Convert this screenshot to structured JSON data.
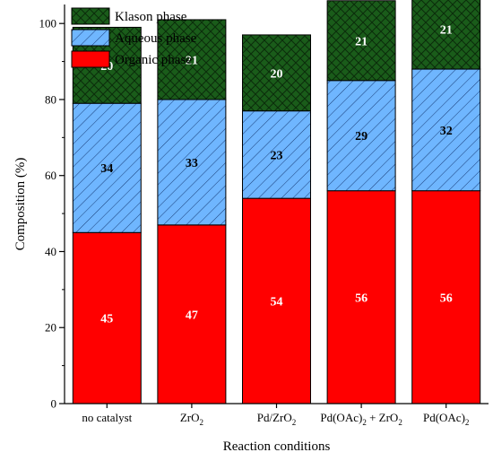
{
  "chart_data": {
    "type": "bar",
    "stacked": true,
    "categories": [
      {
        "main": "no catalyst",
        "parts": [
          [
            "no catalyst",
            ""
          ]
        ]
      },
      {
        "main": "ZrO2",
        "parts": [
          [
            "ZrO",
            ""
          ],
          [
            "2",
            "sub"
          ]
        ]
      },
      {
        "main": "Pd/ZrO2",
        "parts": [
          [
            "Pd/ZrO",
            ""
          ],
          [
            "2",
            "sub"
          ]
        ]
      },
      {
        "main": "Pd(OAc)2 + ZrO2",
        "parts": [
          [
            "Pd(OAc)",
            ""
          ],
          [
            "2",
            "sub"
          ],
          [
            " + ZrO",
            ""
          ],
          [
            "2",
            "sub"
          ]
        ]
      },
      {
        "main": "Pd(OAc)2",
        "parts": [
          [
            "Pd(OAc)",
            ""
          ],
          [
            "2",
            "sub"
          ]
        ]
      }
    ],
    "series": [
      {
        "name": "Organic phase",
        "values": [
          45,
          47,
          54,
          56,
          56
        ],
        "color": "#ff0000",
        "pattern": "solid",
        "label_color": "#ffffff"
      },
      {
        "name": "Aqueous phase",
        "values": [
          34,
          33,
          23,
          29,
          32
        ],
        "color": "#6fb6ff",
        "pattern": "diagonal",
        "label_color": "#000000"
      },
      {
        "name": "Klason phase",
        "values": [
          20,
          21,
          20,
          21,
          21
        ],
        "color": "#1a5c1a",
        "pattern": "crosshatch",
        "label_color": "#ffffff"
      }
    ],
    "legend_order": [
      "Klason phase",
      "Aqueous phase",
      "Organic phase"
    ],
    "legend_position": "top-left",
    "xlabel": "Reaction conditions",
    "ylabel": "Composition (%)",
    "ylim": [
      0,
      105
    ],
    "yticks": [
      0,
      20,
      40,
      60,
      80,
      100
    ],
    "grid": false
  }
}
